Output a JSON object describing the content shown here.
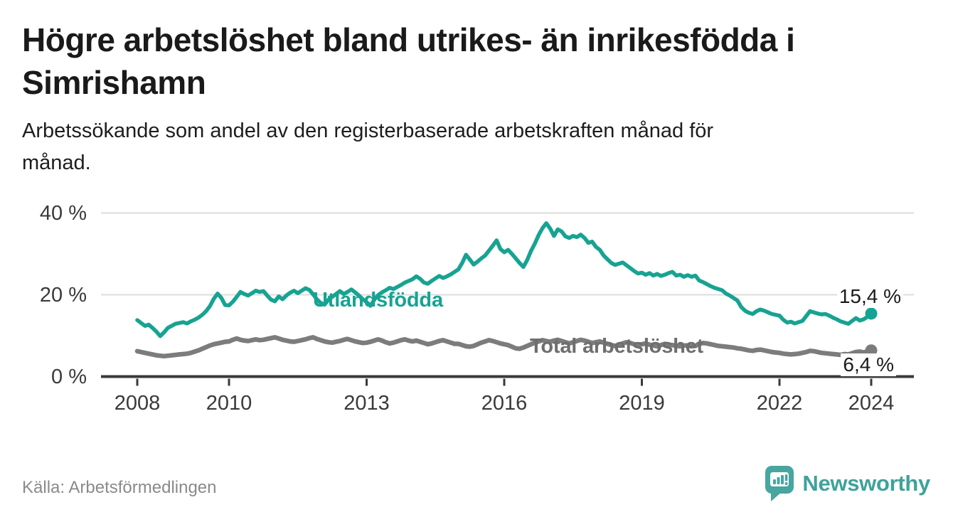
{
  "header": {
    "title_lines": [
      "Högre arbetslöshet bland utrikes- än inrikesfödda i",
      "Simrishamn"
    ],
    "subtitle_lines": [
      "Arbetssökande som andel av den registerbaserade arbetskraften månad för",
      "månad."
    ]
  },
  "footer": {
    "source": "Källa: Arbetsförmedlingen",
    "brand": "Newsworthy"
  },
  "colors": {
    "teal": "#17A392",
    "gray_line": "#7C7C7C",
    "gray_label": "#6E6E6E",
    "axis": "#3A3A3A",
    "grid": "#DCDCDC",
    "end_label_text": "#1A1A1A",
    "logo_teal": "#48A5A0",
    "wordmark_teal": "#3FA29B"
  },
  "chart_data": {
    "type": "line",
    "unit": "%",
    "x_start_year": 2008,
    "points_per_month": 1,
    "ylim": [
      0,
      43
    ],
    "grid_values": [
      20,
      40
    ],
    "y_ticks": [
      {
        "value": 0,
        "label": "0 %"
      },
      {
        "value": 20,
        "label": "20 %"
      },
      {
        "value": 40,
        "label": "40 %"
      }
    ],
    "x_ticks": [
      {
        "year": 2008,
        "label": "2008"
      },
      {
        "year": 2010,
        "label": "2010"
      },
      {
        "year": 2013,
        "label": "2013"
      },
      {
        "year": 2016,
        "label": "2016"
      },
      {
        "year": 2019,
        "label": "2019"
      },
      {
        "year": 2022,
        "label": "2022"
      },
      {
        "year": 2024,
        "label": "2024"
      }
    ],
    "series": [
      {
        "name": "Utlandsfödda",
        "end_label": "15,4 %",
        "end_value": 15.4,
        "values": [
          13.8,
          13.1,
          12.4,
          12.7,
          11.9,
          11.0,
          9.9,
          10.8,
          11.9,
          12.4,
          12.9,
          13.1,
          13.3,
          13.0,
          13.5,
          13.9,
          14.4,
          15.1,
          16.0,
          17.2,
          19.0,
          20.3,
          19.2,
          17.5,
          17.4,
          18.3,
          19.5,
          20.7,
          20.2,
          19.8,
          20.4,
          21.0,
          20.7,
          20.9,
          19.8,
          18.8,
          18.4,
          19.6,
          18.9,
          19.8,
          20.5,
          21.0,
          20.4,
          21.0,
          21.6,
          21.2,
          20.1,
          18.9,
          18.0,
          17.6,
          18.8,
          19.5,
          20.2,
          20.9,
          20.2,
          20.7,
          21.3,
          20.6,
          19.8,
          18.9,
          18.2,
          17.3,
          18.8,
          19.9,
          20.6,
          21.1,
          21.7,
          21.4,
          21.9,
          22.4,
          23.0,
          23.4,
          23.8,
          24.5,
          23.9,
          23.0,
          22.7,
          23.4,
          24.0,
          24.6,
          24.1,
          24.5,
          25.0,
          25.6,
          26.2,
          27.8,
          29.8,
          28.6,
          27.4,
          28.1,
          28.9,
          29.6,
          30.8,
          32.0,
          33.3,
          31.2,
          30.4,
          31.0,
          30.0,
          28.9,
          27.8,
          26.8,
          28.5,
          30.7,
          32.5,
          34.6,
          36.3,
          37.5,
          36.2,
          34.4,
          36.0,
          35.5,
          34.3,
          33.9,
          34.4,
          34.1,
          34.7,
          33.9,
          32.7,
          33.0,
          31.7,
          31.0,
          29.6,
          28.7,
          27.8,
          27.3,
          27.6,
          27.9,
          27.2,
          26.5,
          25.8,
          25.2,
          25.4,
          24.9,
          25.3,
          24.7,
          25.1,
          24.6,
          24.9,
          25.3,
          25.6,
          24.7,
          24.9,
          24.4,
          24.8,
          24.4,
          24.7,
          23.5,
          23.1,
          22.6,
          22.1,
          21.7,
          21.4,
          21.1,
          20.3,
          19.8,
          19.2,
          18.6,
          17.0,
          16.1,
          15.6,
          15.3,
          16.0,
          16.4,
          16.1,
          15.7,
          15.3,
          15.1,
          14.9,
          13.9,
          13.2,
          13.4,
          13.0,
          13.3,
          13.6,
          14.8,
          16.0,
          15.7,
          15.4,
          15.2,
          15.3,
          14.9,
          14.4,
          14.0,
          13.5,
          13.2,
          12.9,
          13.6,
          14.3,
          13.7,
          14.0,
          14.6,
          15.4
        ]
      },
      {
        "name": "Total arbetslöshet",
        "end_label": "6,4 %",
        "end_value": 6.4,
        "values": [
          6.2,
          6.0,
          5.8,
          5.6,
          5.4,
          5.2,
          5.1,
          5.0,
          5.1,
          5.2,
          5.3,
          5.4,
          5.5,
          5.6,
          5.8,
          6.1,
          6.4,
          6.8,
          7.2,
          7.6,
          7.9,
          8.1,
          8.3,
          8.5,
          8.6,
          9.0,
          9.3,
          9.0,
          8.8,
          8.7,
          8.9,
          9.1,
          8.9,
          9.0,
          9.2,
          9.4,
          9.6,
          9.3,
          9.0,
          8.8,
          8.6,
          8.5,
          8.7,
          8.9,
          9.1,
          9.4,
          9.6,
          9.2,
          8.9,
          8.6,
          8.4,
          8.3,
          8.5,
          8.7,
          9.0,
          9.2,
          8.9,
          8.6,
          8.4,
          8.2,
          8.3,
          8.5,
          8.8,
          9.1,
          8.8,
          8.4,
          8.1,
          8.3,
          8.6,
          8.9,
          9.1,
          8.8,
          8.6,
          8.8,
          8.5,
          8.2,
          7.9,
          8.1,
          8.4,
          8.7,
          8.9,
          8.6,
          8.3,
          8.0,
          8.0,
          7.7,
          7.4,
          7.3,
          7.5,
          7.9,
          8.3,
          8.6,
          8.9,
          8.7,
          8.4,
          8.1,
          7.9,
          7.7,
          7.3,
          6.9,
          6.8,
          7.1,
          7.5,
          7.9,
          8.3,
          8.6,
          8.9,
          8.7,
          8.5,
          8.8,
          9.0,
          8.7,
          8.4,
          8.1,
          8.4,
          8.7,
          9.0,
          8.8,
          8.5,
          8.2,
          8.4,
          8.6,
          8.3,
          8.0,
          7.7,
          7.5,
          7.8,
          8.1,
          8.4,
          8.2,
          7.9,
          7.7,
          7.9,
          8.1,
          7.8,
          7.6,
          7.4,
          7.7,
          8.0,
          7.8,
          7.7,
          7.5,
          7.4,
          7.6,
          7.6,
          7.4,
          7.5,
          8.0,
          8.2,
          8.1,
          7.9,
          7.7,
          7.5,
          7.4,
          7.3,
          7.2,
          7.1,
          6.9,
          6.8,
          6.6,
          6.4,
          6.3,
          6.5,
          6.6,
          6.4,
          6.2,
          6.0,
          5.9,
          5.8,
          5.6,
          5.5,
          5.4,
          5.5,
          5.6,
          5.8,
          6.0,
          6.3,
          6.2,
          6.0,
          5.8,
          5.7,
          5.6,
          5.5,
          5.4,
          5.3,
          5.5,
          5.4,
          5.7,
          6.0,
          6.1,
          5.9,
          6.1,
          6.4
        ]
      }
    ]
  }
}
